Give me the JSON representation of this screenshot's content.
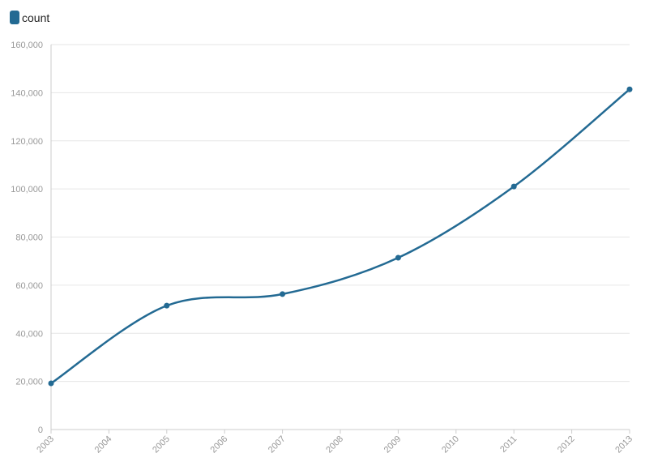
{
  "chart_data": {
    "type": "line",
    "x": [
      2003,
      2005,
      2007,
      2009,
      2011,
      2013
    ],
    "series": [
      {
        "name": "count",
        "color": "#236a93",
        "values": [
          19200,
          51500,
          56300,
          71400,
          101000,
          141400
        ]
      }
    ],
    "xlim": [
      2003,
      2013
    ],
    "xticks": [
      2003,
      2004,
      2005,
      2006,
      2007,
      2008,
      2009,
      2010,
      2011,
      2012,
      2013
    ],
    "ylim": [
      0,
      160000
    ],
    "yticks": [
      0,
      {
        "value": 20000,
        "label": "20,000"
      },
      {
        "value": 40000,
        "label": "40,000"
      },
      {
        "value": 60000,
        "label": "60,000"
      },
      {
        "value": 80000,
        "label": "80,000"
      },
      {
        "value": 100000,
        "label": "100,000"
      },
      {
        "value": 120000,
        "label": "120,000"
      },
      {
        "value": 140000,
        "label": "140,000"
      },
      {
        "value": 160000,
        "label": "160,000"
      }
    ],
    "grid": true
  }
}
